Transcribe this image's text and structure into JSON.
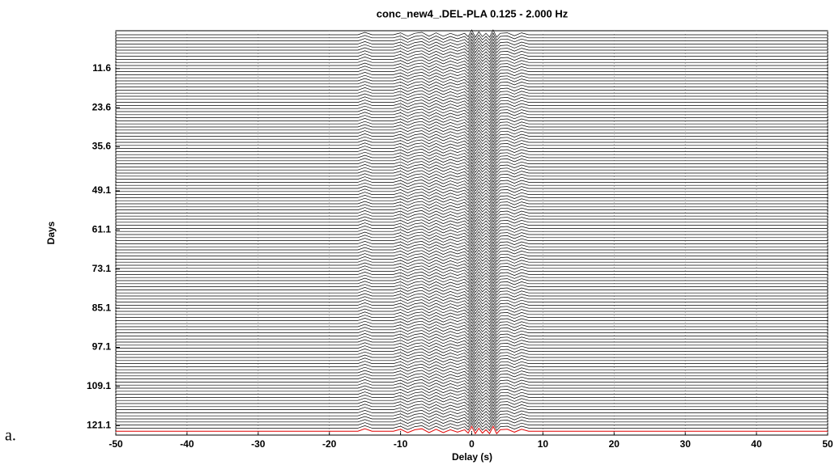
{
  "chart_data": {
    "type": "wiggle",
    "title": "conc_new4_.DEL-PLA 0.125 - 2.000 Hz",
    "x_label": "Delay (s)",
    "y_label": "Days",
    "panel_label": "a.",
    "xlim": [
      -50,
      50
    ],
    "xticks": [
      -50,
      -40,
      -30,
      -20,
      -10,
      0,
      10,
      20,
      30,
      40,
      50
    ],
    "ylim": [
      0,
      124
    ],
    "yticks": [
      11.6,
      23.6,
      35.6,
      49.1,
      61.1,
      73.1,
      85.1,
      97.1,
      109.1,
      121.1
    ],
    "y_inverted": true,
    "grid": true,
    "series": [
      {
        "color": "#000000",
        "x": [
          -50,
          -16,
          -15,
          -14,
          -11,
          -10,
          -9,
          -8,
          -7,
          -6,
          -5,
          -4,
          -3,
          -2,
          -1,
          -0.5,
          0,
          0.5,
          1,
          1.5,
          2,
          2.5,
          3,
          3.5,
          4,
          5,
          6,
          7,
          8,
          10,
          50
        ],
        "values": [
          0,
          0,
          0.5,
          0,
          0,
          0.4,
          -0.3,
          0.3,
          0.5,
          -0.3,
          0.4,
          -0.3,
          0.3,
          -0.2,
          0.3,
          -0.4,
          1,
          -0.5,
          0.6,
          -0.4,
          0.3,
          -0.5,
          1,
          -0.5,
          0.3,
          0.4,
          -0.2,
          0.4,
          0,
          0,
          0
        ]
      }
    ],
    "last_trace_color": "#e00000"
  }
}
